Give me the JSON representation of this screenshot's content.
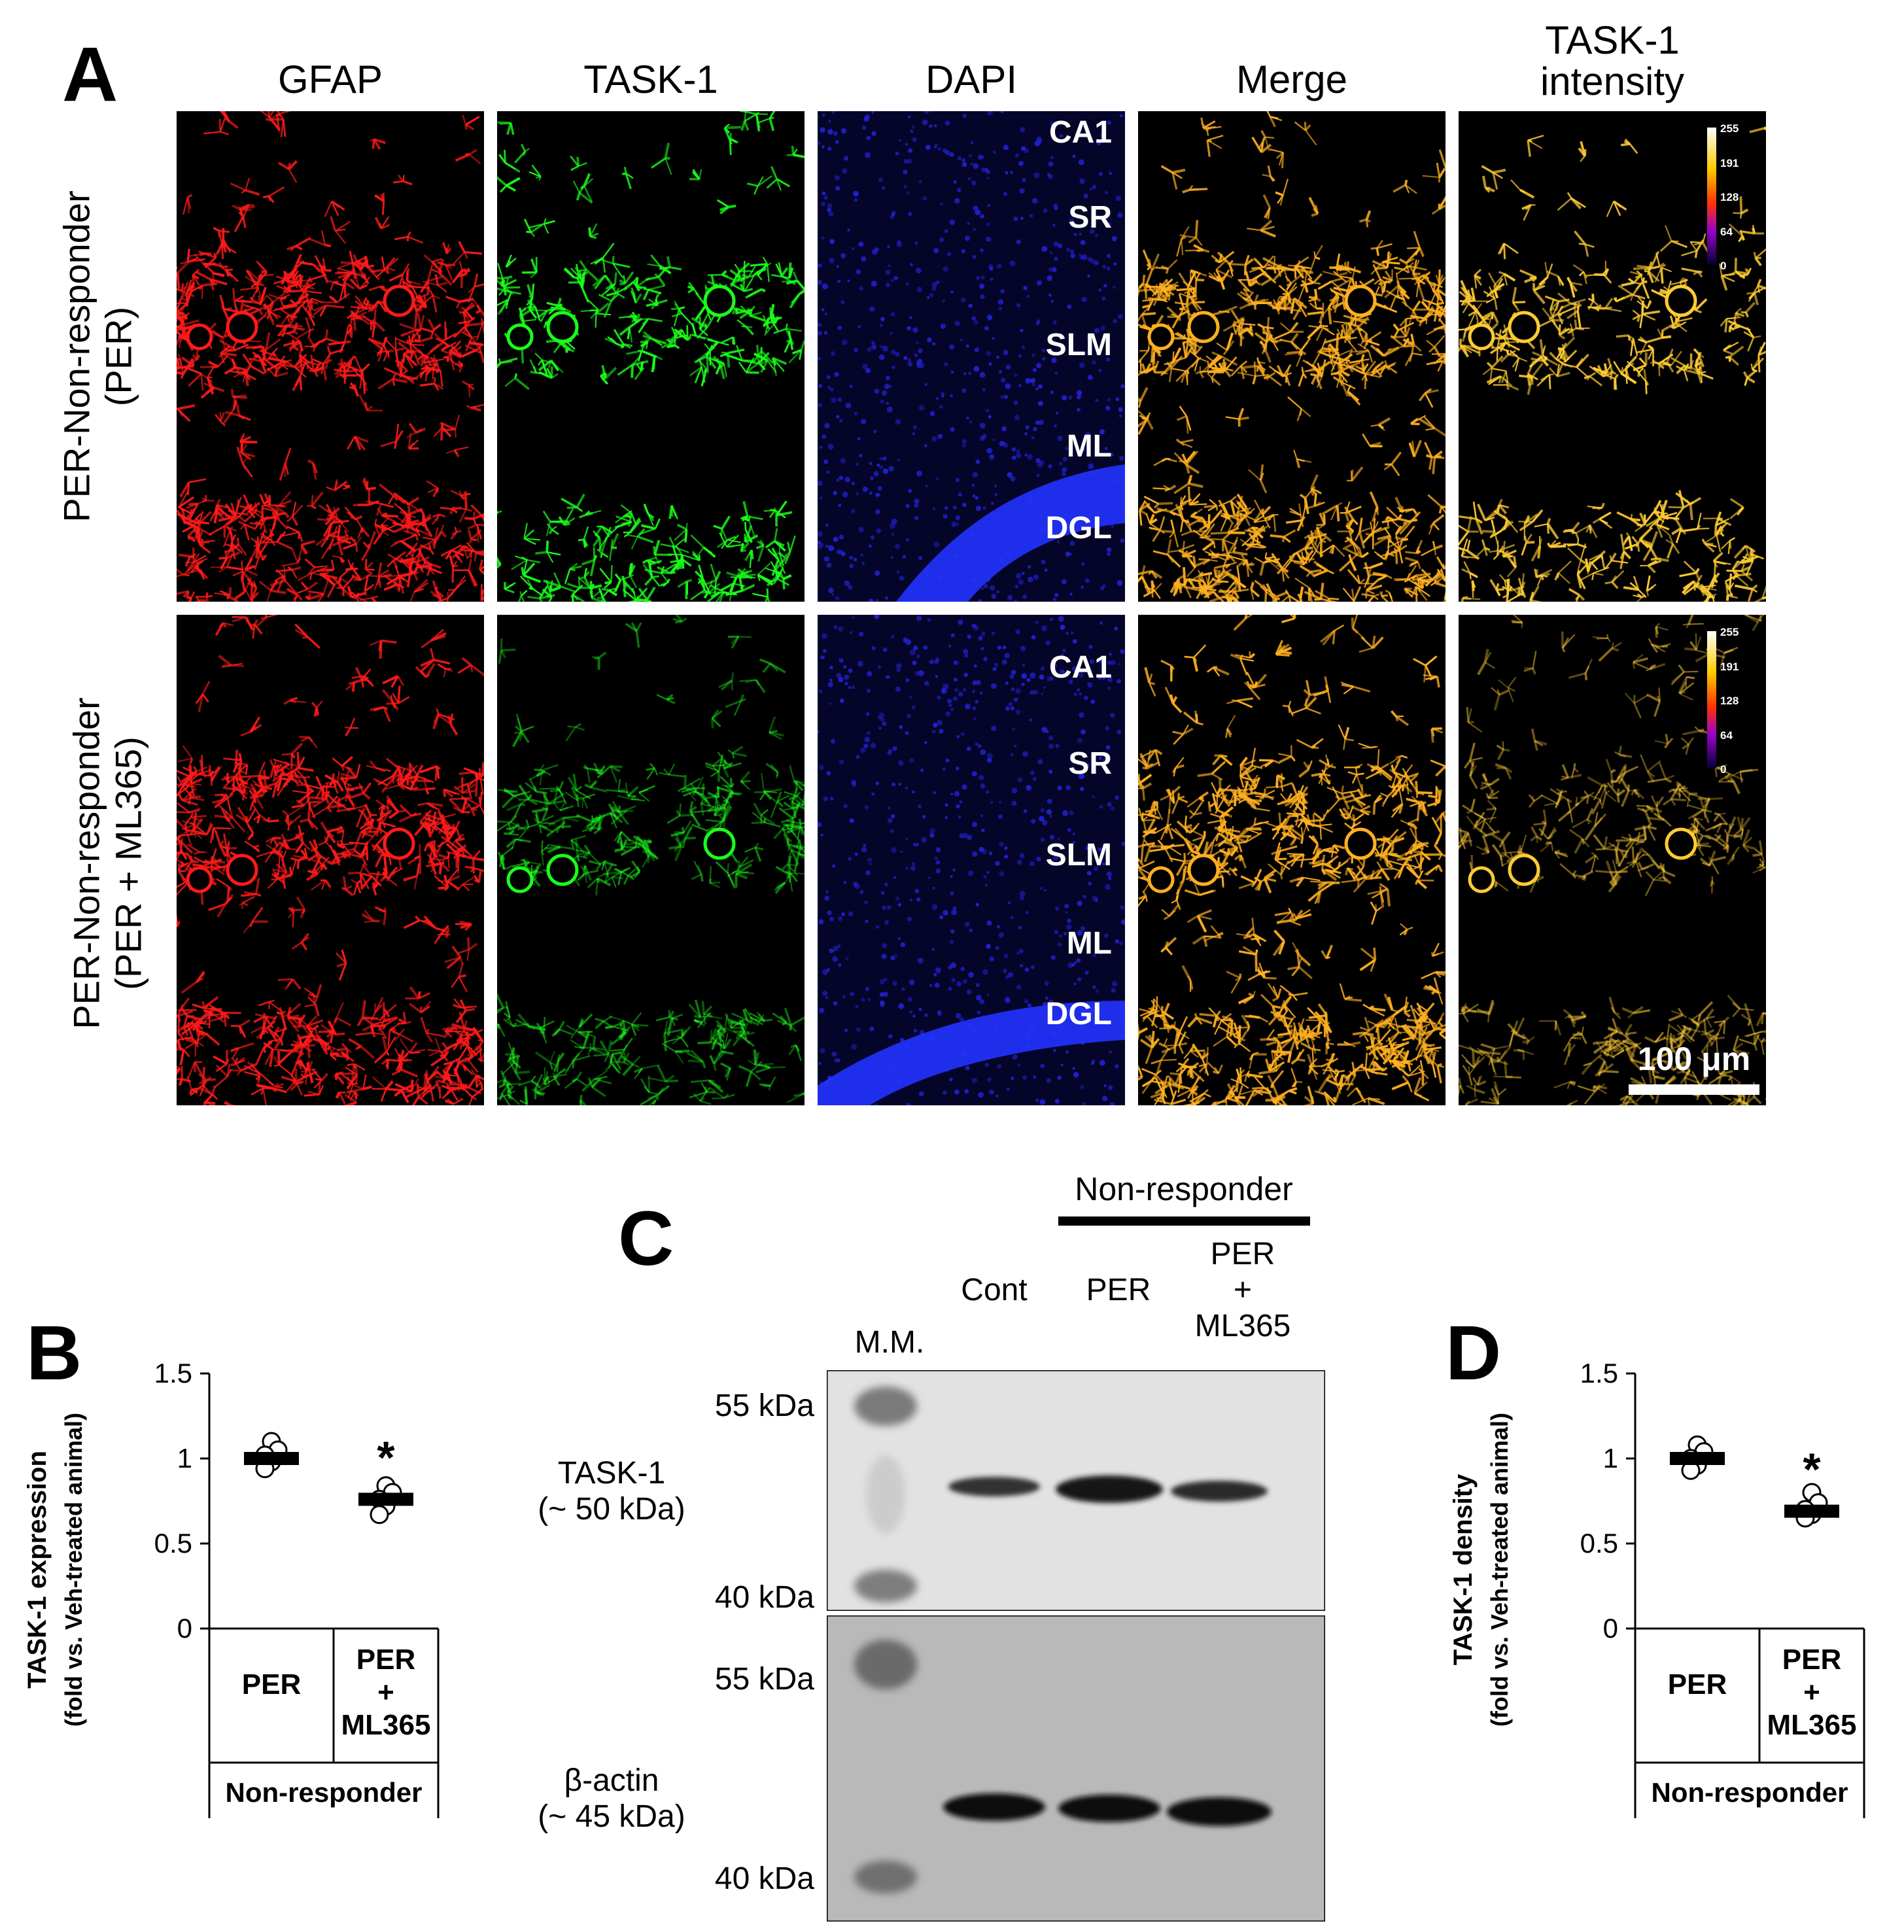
{
  "panelA": {
    "letter": "A",
    "columns": [
      "GFAP",
      "TASK-1",
      "DAPI",
      "Merge",
      "TASK-1\nintensity"
    ],
    "rows": [
      "PER-Non-responder\n(PER)",
      "PER-Non-responder\n(PER + ML365)"
    ],
    "regions": [
      "CA1",
      "SR",
      "SLM",
      "ML",
      "DGL"
    ],
    "colorbar_ticks": [
      "255",
      "191",
      "128",
      "64",
      "0"
    ],
    "scale_bar": "100 μm",
    "colors": {
      "gfap": "#ff1a1a",
      "task1": "#1aff1a",
      "dapi": "#2a2aff",
      "merge": "#ffb020",
      "intensity": "#ffcc33"
    }
  },
  "panelB": {
    "letter": "B",
    "ylabel_line1": "TASK-1 expression",
    "ylabel_line2": "(fold vs. Veh-treated animal)",
    "group_label": "Non-responder",
    "star": "*"
  },
  "panelC": {
    "letter": "C",
    "group_header": "Non-responder",
    "lanes": [
      "M.M.",
      "Cont",
      "PER",
      "PER\n+\nML365"
    ],
    "blot1_label": "TASK-1\n(~ 50 kDa)",
    "blot2_label": "β-actin\n(~ 45 kDa)",
    "markers_top": [
      "55 kDa",
      "40 kDa"
    ],
    "markers_bottom": [
      "55 kDa",
      "40 kDa"
    ]
  },
  "panelD": {
    "letter": "D",
    "ylabel_line1": "TASK-1 density",
    "ylabel_line2": "(fold vs. Veh-treated animal)",
    "group_label": "Non-responder",
    "star": "*"
  },
  "chart_data": [
    {
      "type": "scatter",
      "title": "",
      "ylabel": "TASK-1 expression (fold vs. Veh-treated animal)",
      "categories": [
        "PER",
        "PER\n+\nML365"
      ],
      "means": [
        1.0,
        0.76
      ],
      "points": [
        [
          1.1,
          1.05,
          1.02,
          0.98,
          0.94
        ],
        [
          0.84,
          0.8,
          0.76,
          0.72,
          0.67
        ]
      ],
      "yticks": [
        "0",
        "0.5",
        "1",
        "1.5"
      ],
      "ylim": [
        0,
        1.5
      ]
    },
    {
      "type": "scatter",
      "title": "",
      "ylabel": "TASK-1 density (fold vs. Veh-treated animal)",
      "categories": [
        "PER",
        "PER\n+\nML365"
      ],
      "means": [
        1.0,
        0.69
      ],
      "points": [
        [
          1.08,
          1.04,
          1.0,
          0.96,
          0.93
        ],
        [
          0.8,
          0.74,
          0.7,
          0.67,
          0.65
        ]
      ],
      "yticks": [
        "0",
        "0.5",
        "1",
        "1.5"
      ],
      "ylim": [
        0,
        1.5
      ]
    }
  ]
}
